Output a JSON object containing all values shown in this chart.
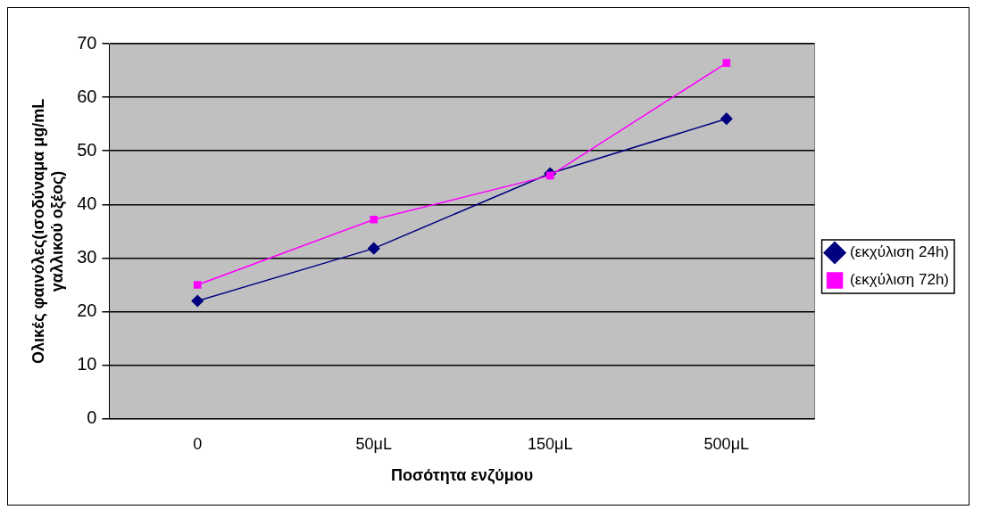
{
  "chart_data": {
    "type": "line",
    "xlabel": "Ποσότητα ενζύμου",
    "ylabel": "Ολικές φαινόλες(ισοδύναμα μg/mL γαλλικού οξέος)",
    "categories": [
      "0",
      "50μL",
      "150μL",
      "500μL"
    ],
    "series": [
      {
        "name": "(εκχύλιση 24h)",
        "color": "#000080",
        "marker": "diamond",
        "values": [
          22,
          31.8,
          45.8,
          56
        ]
      },
      {
        "name": "(εκχύλιση 72h)",
        "color": "#ff00ff",
        "marker": "square",
        "values": [
          25,
          37.2,
          45.4,
          66.4
        ]
      }
    ],
    "ylim": [
      0,
      70
    ],
    "yticks": [
      0,
      10,
      20,
      30,
      40,
      50,
      60,
      70
    ],
    "grid": "y",
    "legend": "right"
  }
}
